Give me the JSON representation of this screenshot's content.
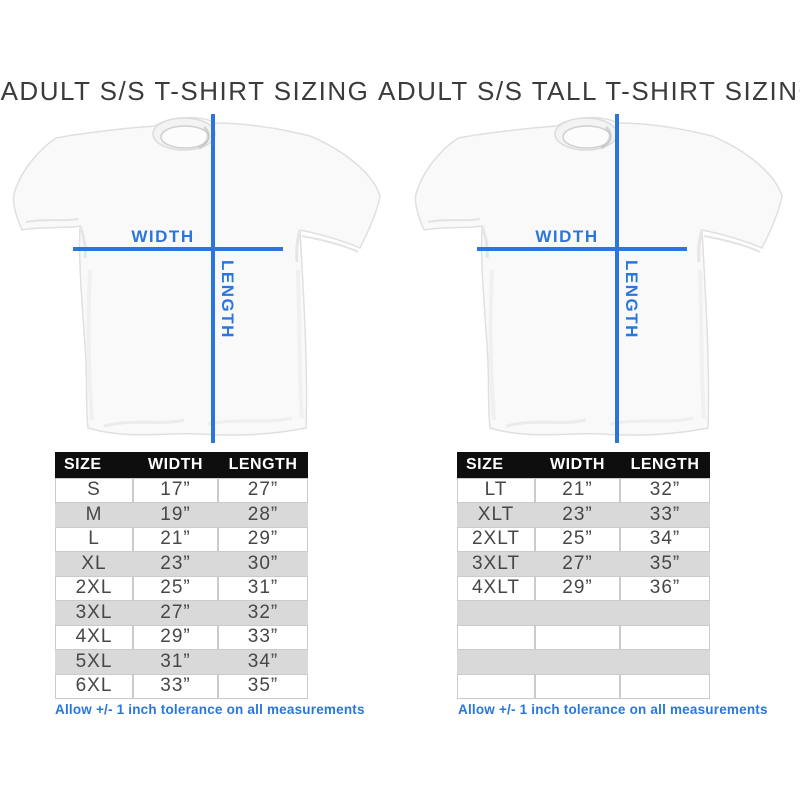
{
  "colors": {
    "accent_blue": "#2a76dd",
    "table_header_bg": "#0e0e0e",
    "table_header_text": "#ffffff",
    "row_alt_gray": "#d9d9d9",
    "row_border": "#cbcbcb",
    "cell_text": "#474747",
    "title_text": "#3b3b3b"
  },
  "panels": [
    {
      "title": "ADULT S/S T-SHIRT SIZING",
      "diagram": {
        "width_label": "WIDTH",
        "length_label": "LENGTH"
      },
      "table": {
        "headers": [
          "SIZE",
          "WIDTH",
          "LENGTH"
        ],
        "rows": [
          [
            "S",
            "17”",
            "27”"
          ],
          [
            "M",
            "19”",
            "28”"
          ],
          [
            "L",
            "21”",
            "29”"
          ],
          [
            "XL",
            "23”",
            "30”"
          ],
          [
            "2XL",
            "25”",
            "31”"
          ],
          [
            "3XL",
            "27”",
            "32”"
          ],
          [
            "4XL",
            "29”",
            "33”"
          ],
          [
            "5XL",
            "31”",
            "34”"
          ],
          [
            "6XL",
            "33”",
            "35”"
          ]
        ]
      },
      "note": "Allow +/- 1 inch tolerance on all measurements"
    },
    {
      "title": "ADULT S/S TALL T-SHIRT SIZING",
      "diagram": {
        "width_label": "WIDTH",
        "length_label": "LENGTH"
      },
      "table": {
        "headers": [
          "SIZE",
          "WIDTH",
          "LENGTH"
        ],
        "rows": [
          [
            "LT",
            "21”",
            "32”"
          ],
          [
            "XLT",
            "23”",
            "33”"
          ],
          [
            "2XLT",
            "25”",
            "34”"
          ],
          [
            "3XLT",
            "27”",
            "35”"
          ],
          [
            "4XLT",
            "29”",
            "36”"
          ],
          [
            "",
            "",
            ""
          ],
          [
            "",
            "",
            ""
          ],
          [
            "",
            "",
            ""
          ],
          [
            "",
            "",
            ""
          ]
        ]
      },
      "note": "Allow +/- 1 inch tolerance on all measurements"
    }
  ]
}
